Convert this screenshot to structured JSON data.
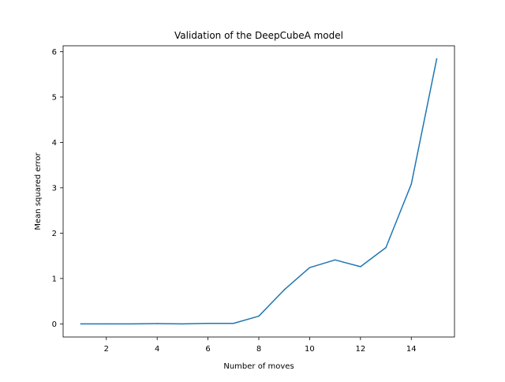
{
  "chart_data": {
    "type": "line",
    "title": "Validation of the DeepCubeA model",
    "xlabel": "Number of moves",
    "ylabel": "Mean squared error",
    "xlim": [
      0.3,
      15.7
    ],
    "ylim": [
      -0.29,
      6.13
    ],
    "xticks": [
      2,
      4,
      6,
      8,
      10,
      12,
      14
    ],
    "yticks": [
      0,
      1,
      2,
      3,
      4,
      5,
      6
    ],
    "grid": false,
    "series": [
      {
        "color": "#1f77b4",
        "x": [
          1,
          2,
          3,
          4,
          5,
          6,
          7,
          8,
          9,
          10,
          11,
          12,
          13,
          14,
          15
        ],
        "y": [
          0.0,
          0.0,
          0.0,
          0.005,
          0.0,
          0.01,
          0.01,
          0.17,
          0.75,
          1.24,
          1.41,
          1.26,
          1.68,
          3.08,
          5.84
        ]
      }
    ]
  }
}
